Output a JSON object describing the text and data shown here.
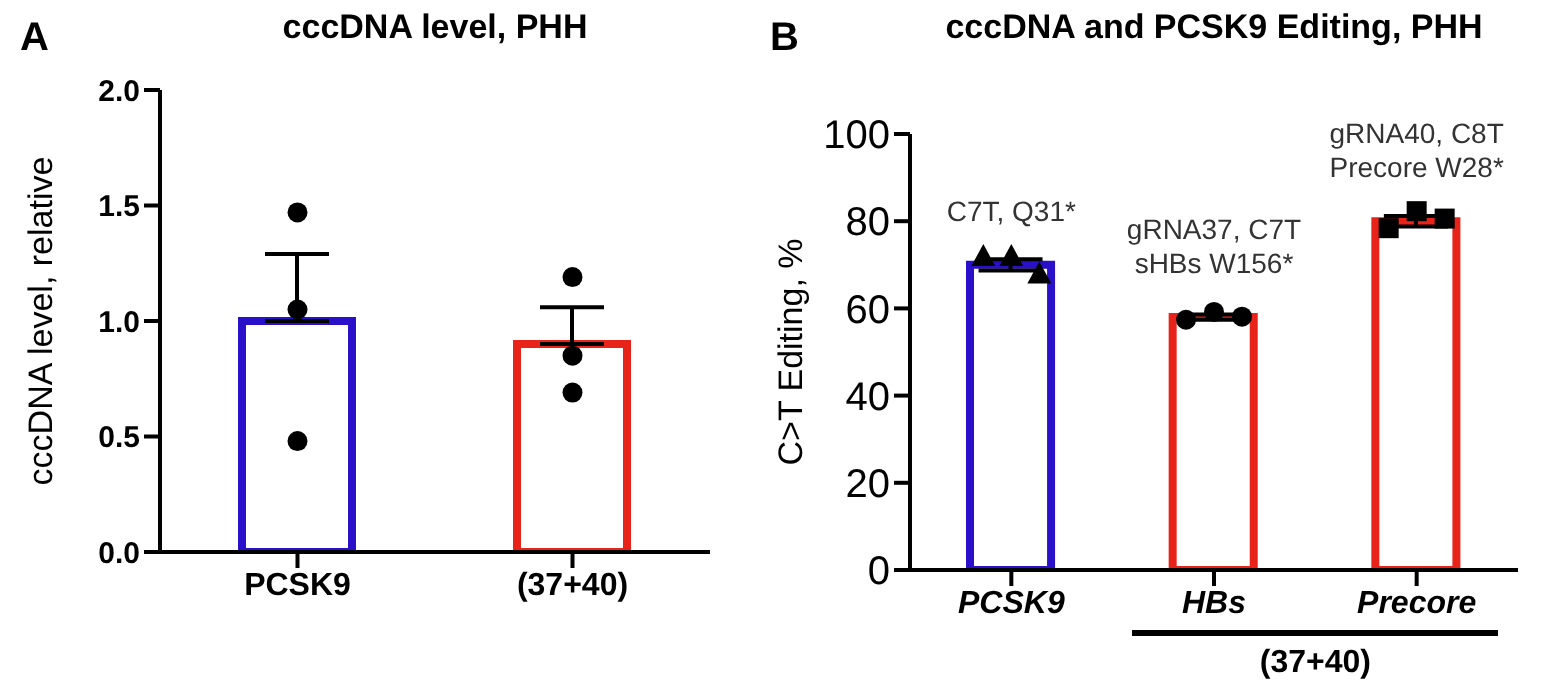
{
  "chart_data": [
    {
      "type": "bar",
      "title": "cccDNA level, PHH",
      "ylabel": "cccDNA level, relative",
      "categories": [
        "PCSK9",
        "(37+40)"
      ],
      "legend": false,
      "grid": false,
      "series": [
        {
          "values": [
            1.0,
            0.9
          ],
          "colors": [
            "#2a10c8",
            "#e8231a"
          ],
          "errors": [
            [
              1.0,
              1.29
            ],
            [
              0.9,
              1.06
            ]
          ]
        },
        {
          "type": "scatter",
          "color": "#000000",
          "marker": "circle",
          "x": [
            "PCSK9",
            "PCSK9",
            "PCSK9",
            "(37+40)",
            "(37+40)",
            "(37+40)"
          ],
          "values": [
            1.47,
            1.05,
            0.48,
            1.19,
            0.85,
            0.69
          ]
        }
      ],
      "ylim": [
        0,
        2
      ],
      "yticks": [
        {
          "value": 0,
          "label": "0.0"
        },
        0.5,
        {
          "value": 1,
          "label": "1.0"
        },
        1.5,
        {
          "value": 2,
          "label": "2.0"
        }
      ],
      "annotations": [
        "A"
      ]
    },
    {
      "type": "bar",
      "title": "cccDNA and PCSK9 Editing, PHH",
      "ylabel": "C>T Editing, %",
      "categories": [
        "PCSK9",
        "HBs",
        "Precore"
      ],
      "legend": false,
      "grid": false,
      "series": [
        {
          "values": [
            70,
            58,
            80
          ],
          "colors": [
            "#2a10c8",
            "#e8231a",
            "#e8231a"
          ],
          "errors": [
            1.3,
            0.6,
            1.2
          ]
        },
        {
          "type": "scatter",
          "color": "#000000",
          "marker": "triangle",
          "x": [
            "PCSK9",
            "PCSK9",
            "PCSK9"
          ],
          "values": [
            72,
            72,
            68
          ]
        },
        {
          "type": "scatter",
          "color": "#000000",
          "marker": "circle",
          "x": [
            "HBs",
            "HBs",
            "HBs"
          ],
          "values": [
            57.4,
            59.2,
            58.1
          ]
        },
        {
          "type": "scatter",
          "color": "#000000",
          "marker": "square",
          "x": [
            "Precore",
            "Precore",
            "Precore"
          ],
          "values": [
            78.4,
            82.3,
            80.6
          ]
        }
      ],
      "ylim": [
        0,
        100
      ],
      "yticks": [
        0,
        20,
        40,
        60,
        80,
        100
      ],
      "annotations": [
        "B",
        "(37+40)",
        {
          "text": "C7T, Q31*",
          "x": "PCSK9",
          "y": 70
        },
        {
          "text": "gRNA37, C7T\nsHBs W156*",
          "x": "HBs",
          "y": 58
        },
        {
          "text": "gRNA40, C8T\nPrecore W28*",
          "x": "Precore",
          "y": 80
        }
      ]
    }
  ]
}
